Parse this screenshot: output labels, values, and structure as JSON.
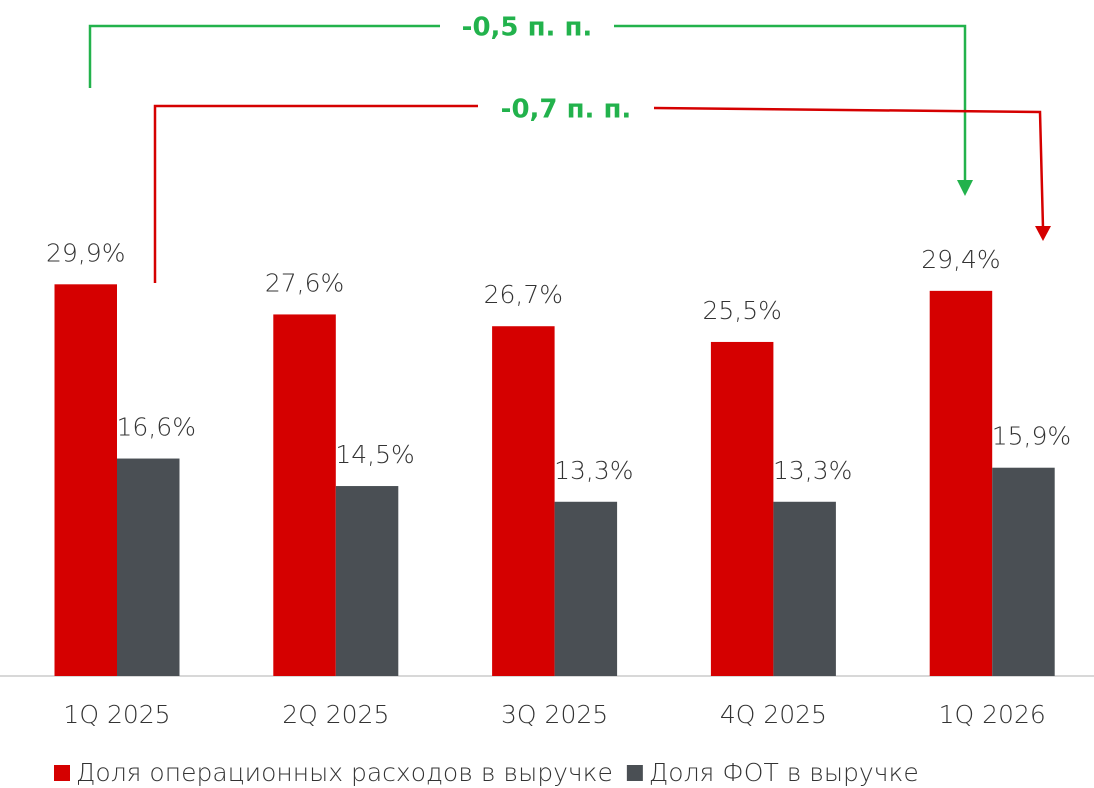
{
  "chart_data": {
    "type": "bar",
    "categories": [
      "1Q 2025",
      "2Q 2025",
      "3Q 2025",
      "4Q 2025",
      "1Q 2026"
    ],
    "series": [
      {
        "name": "Доля операционных расходов в выручке",
        "color": "#d50000",
        "values": [
          29.9,
          27.6,
          26.7,
          25.5,
          29.4
        ],
        "value_labels": [
          "29,9%",
          "27,6%",
          "26,7%",
          "25,5%",
          "29,4%"
        ]
      },
      {
        "name": "Доля ФОТ в выручке",
        "color": "#4a4f54",
        "values": [
          16.6,
          14.5,
          13.3,
          13.3,
          15.9
        ],
        "value_labels": [
          "16,6%",
          "14,5%",
          "13,3%",
          "13,3%",
          "15,9%"
        ]
      }
    ],
    "annotations": [
      "-0,5 п. п.",
      "-0,7 п. п."
    ]
  }
}
